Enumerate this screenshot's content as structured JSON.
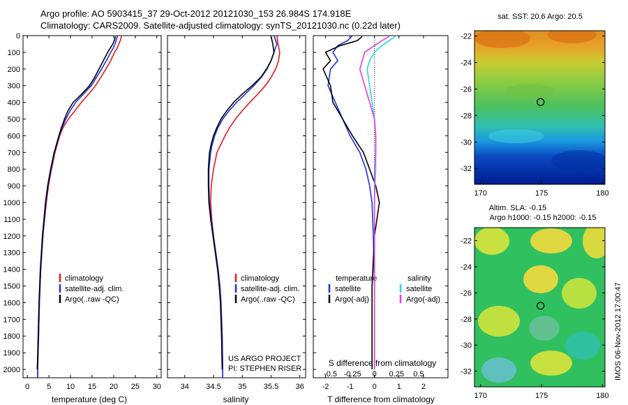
{
  "header": {
    "title_line1": "Argo profile: AO 5903415_37 29-Oct-2012 20121030_153 26.984S 174.918E",
    "title_line2": "Climatology: CARS2009. Satellite-adjusted climatology: synTS_20121030.nc (0.22d later)"
  },
  "project_text": {
    "line1": "US ARGO PROJECT",
    "line2": "PI: STEPHEN RISER"
  },
  "stamp": "IMOS 06-Nov-2012 17:00:47",
  "colors": {
    "climatology": "#e41a1c",
    "satellite": "#1f2fd8",
    "argo": "#000000",
    "sat_salinity": "#26d7e0",
    "argo_adj_salinity": "#e83ce0"
  },
  "chart_data": [
    {
      "type": "line",
      "xlabel": "temperature (deg C)",
      "ylabel": "",
      "xlim": [
        -1,
        31
      ],
      "ylim": [
        2050,
        0
      ],
      "x_ticks": [
        0,
        5,
        10,
        15,
        20,
        25,
        30
      ],
      "y_ticks": [
        0,
        100,
        200,
        300,
        400,
        500,
        600,
        700,
        800,
        900,
        1000,
        1100,
        1200,
        1300,
        1400,
        1500,
        1600,
        1700,
        1800,
        1900,
        2000
      ],
      "legend": [
        "climatology",
        "satellite-adj. clim.",
        "Argo(..raw -QC)"
      ],
      "series": [
        {
          "name": "climatology",
          "depth": [
            0,
            25,
            50,
            75,
            100,
            150,
            200,
            250,
            300,
            350,
            400,
            450,
            500,
            550,
            600,
            700,
            800,
            900,
            1000,
            1200,
            1400,
            1600,
            1800,
            2000,
            2050
          ],
          "values": [
            21.8,
            21.6,
            21.2,
            20.8,
            20.2,
            19.3,
            18.2,
            17.0,
            15.8,
            14.2,
            12.5,
            11.0,
            9.5,
            8.3,
            7.5,
            6.4,
            5.6,
            4.9,
            4.4,
            3.6,
            3.1,
            2.8,
            2.6,
            2.4,
            2.4
          ]
        },
        {
          "name": "satellite-adj. clim.",
          "depth": [
            0,
            25,
            50,
            75,
            100,
            150,
            200,
            250,
            300,
            350,
            400,
            450,
            500,
            550,
            600,
            700,
            800,
            900,
            1000,
            1200,
            1400,
            1600,
            1800,
            2000,
            2050
          ],
          "values": [
            20.9,
            20.6,
            20.3,
            19.9,
            19.3,
            18.3,
            17.2,
            16.0,
            14.8,
            13.0,
            11.2,
            9.9,
            8.9,
            8.1,
            7.4,
            6.3,
            5.5,
            4.8,
            4.3,
            3.6,
            3.1,
            2.8,
            2.6,
            2.4,
            2.4
          ]
        },
        {
          "name": "Argo(..raw -QC)",
          "depth": [
            5,
            25,
            50,
            75,
            100,
            150,
            200,
            250,
            300,
            350,
            400,
            450,
            500,
            550,
            600,
            700,
            800,
            900,
            1000,
            1200,
            1400,
            1600,
            1800,
            2000
          ],
          "values": [
            20.4,
            20.2,
            19.8,
            19.2,
            18.6,
            17.6,
            16.6,
            15.6,
            14.4,
            12.6,
            10.6,
            9.4,
            8.6,
            7.9,
            7.3,
            6.2,
            5.4,
            4.7,
            4.2,
            3.5,
            3.0,
            2.7,
            2.5,
            2.3
          ]
        }
      ]
    },
    {
      "type": "line",
      "xlabel": "salinity",
      "ylabel": "",
      "xlim": [
        33.7,
        36.1
      ],
      "ylim": [
        2050,
        0
      ],
      "x_ticks": [
        34,
        34.5,
        35,
        35.5,
        36
      ],
      "legend": [
        "climatology",
        "satellite-adj. clim.",
        "Argo(..raw -QC)"
      ],
      "series": [
        {
          "name": "climatology",
          "depth": [
            0,
            50,
            100,
            150,
            200,
            250,
            300,
            350,
            400,
            450,
            500,
            550,
            600,
            650,
            700,
            800,
            900,
            1000,
            1100,
            1200,
            1300,
            1400,
            1500,
            1600,
            1800,
            2000,
            2050
          ],
          "values": [
            35.6,
            35.62,
            35.65,
            35.63,
            35.58,
            35.5,
            35.4,
            35.27,
            35.13,
            35.0,
            34.88,
            34.78,
            34.7,
            34.63,
            34.56,
            34.5,
            34.46,
            34.45,
            34.47,
            34.5,
            34.54,
            34.58,
            34.61,
            34.63,
            34.65,
            34.66,
            34.66
          ]
        },
        {
          "name": "satellite-adj. clim.",
          "depth": [
            0,
            50,
            100,
            150,
            200,
            250,
            300,
            350,
            400,
            450,
            500,
            550,
            600,
            650,
            700,
            800,
            900,
            1000,
            1100,
            1200,
            1300,
            1400,
            1500,
            1600,
            1800,
            2000,
            2050
          ],
          "values": [
            35.55,
            35.6,
            35.55,
            35.5,
            35.43,
            35.33,
            35.2,
            35.05,
            34.9,
            34.77,
            34.66,
            34.58,
            34.52,
            34.48,
            34.45,
            34.42,
            34.42,
            34.43,
            34.46,
            34.5,
            34.54,
            34.58,
            34.61,
            34.63,
            34.65,
            34.66,
            34.66
          ]
        },
        {
          "name": "Argo(..raw -QC)",
          "depth": [
            5,
            50,
            100,
            150,
            200,
            250,
            300,
            350,
            400,
            450,
            500,
            550,
            600,
            650,
            700,
            800,
            900,
            1000,
            1100,
            1200,
            1300,
            1400,
            1500,
            1600,
            1800,
            2000
          ],
          "values": [
            35.5,
            35.53,
            35.55,
            35.5,
            35.42,
            35.32,
            35.17,
            35.0,
            34.85,
            34.73,
            34.63,
            34.56,
            34.5,
            34.46,
            34.43,
            34.41,
            34.41,
            34.42,
            34.45,
            34.49,
            34.53,
            34.57,
            34.6,
            34.62,
            34.64,
            34.65
          ]
        }
      ]
    },
    {
      "type": "line",
      "xlabel": "T difference from climatology",
      "x2label": "S difference from climatology",
      "ylabel": "",
      "xlim": [
        -2.5,
        3
      ],
      "ylim": [
        2050,
        0
      ],
      "x_ticks": [
        -2,
        -1,
        0,
        1,
        2
      ],
      "x2_ticks": [
        {
          "pos": -1.8,
          "label": "-0.5"
        },
        {
          "pos": -0.9,
          "label": "-0.25"
        },
        {
          "pos": 0,
          "label": "0"
        },
        {
          "pos": 0.9,
          "label": "0.25"
        },
        {
          "pos": 1.8,
          "label": "0.5"
        }
      ],
      "legend_left_title": "temperature",
      "legend_right_title": "salinity",
      "legend": [
        "satellite",
        "Argo(-adj)",
        "satellite",
        "Argo(-adj)"
      ],
      "series": [
        {
          "name": "satellite",
          "group": "temperature",
          "depth": [
            0,
            30,
            60,
            100,
            150,
            200,
            300,
            400,
            500,
            600,
            700,
            800,
            900,
            1000,
            1200,
            1500,
            2000
          ],
          "values": [
            -0.9,
            -1.1,
            -1.5,
            -1.7,
            -1.5,
            -1.8,
            -1.9,
            -1.6,
            -1.3,
            -1.0,
            -0.6,
            -0.35,
            -0.2,
            -0.1,
            -0.05,
            0,
            0
          ]
        },
        {
          "name": "Argo(-adj)",
          "group": "temperature",
          "depth": [
            5,
            30,
            60,
            100,
            150,
            200,
            300,
            400,
            500,
            600,
            700,
            800,
            900,
            1000,
            1200,
            1500,
            2000
          ],
          "values": [
            -0.5,
            -0.7,
            -1.4,
            -2.0,
            -1.8,
            -2.1,
            -1.8,
            -1.7,
            -1.3,
            -0.9,
            -0.45,
            -0.2,
            0.05,
            0.2,
            0,
            -0.1,
            -0.1
          ]
        },
        {
          "name": "satellite",
          "group": "salinity",
          "depth": [
            0,
            30,
            60,
            100,
            150,
            200,
            300,
            400,
            500,
            600,
            700,
            800,
            900,
            1000,
            1200,
            1500,
            2000
          ],
          "values": [
            0.9,
            0.6,
            0.3,
            0.0,
            -0.2,
            -0.3,
            -0.2,
            -0.1,
            0,
            0.05,
            0.05,
            0.05,
            0.02,
            0,
            0,
            0,
            0
          ]
        },
        {
          "name": "Argo(-adj)",
          "group": "salinity",
          "depth": [
            5,
            30,
            60,
            100,
            150,
            200,
            300,
            400,
            500,
            600,
            700,
            800,
            900,
            1000,
            1200,
            1500,
            2000
          ],
          "values": [
            0.6,
            0.3,
            0.0,
            -0.4,
            -0.5,
            -0.6,
            -0.4,
            -0.2,
            0,
            0.05,
            0.05,
            0,
            0,
            0,
            0,
            0,
            0
          ]
        }
      ]
    },
    {
      "type": "heatmap",
      "title": "sat. SST: 20.6 Argo: 20.5",
      "xlim": [
        169.5,
        180.2
      ],
      "ylim": [
        -33.2,
        -21.6
      ],
      "x_ticks": [
        170,
        175,
        180
      ],
      "y_ticks": [
        -22,
        -24,
        -26,
        -28,
        -30,
        -32
      ],
      "marker": {
        "x": 174.918,
        "y": -26.984
      }
    },
    {
      "type": "heatmap",
      "title": "Altim. SLA: -0.15",
      "subtitle": "Argo h1000: -0.15 h2000: -0.15",
      "xlim": [
        169.5,
        180.2
      ],
      "ylim": [
        -33.2,
        -21.0
      ],
      "x_ticks": [
        170,
        175,
        180
      ],
      "y_ticks": [
        -22,
        -24,
        -26,
        -28,
        -30,
        -32
      ],
      "marker": {
        "x": 174.918,
        "y": -26.984
      }
    }
  ]
}
